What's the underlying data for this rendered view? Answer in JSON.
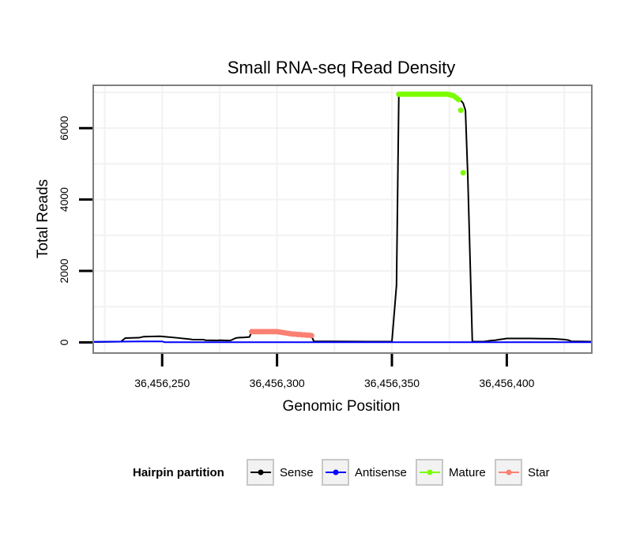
{
  "chart_data": {
    "type": "line",
    "title": "Small RNA-seq Read Density",
    "xlabel": "Genomic Position",
    "ylabel": "Total Reads",
    "xlim": [
      36456220,
      36456437
    ],
    "ylim": [
      -300,
      7200
    ],
    "x_ticks": [
      {
        "value": 36456250,
        "label": "36,456,250"
      },
      {
        "value": 36456300,
        "label": "36,456,300"
      },
      {
        "value": 36456350,
        "label": "36,456,350"
      },
      {
        "value": 36456400,
        "label": "36,456,400"
      }
    ],
    "y_ticks": [
      {
        "value": 0,
        "label": "0"
      },
      {
        "value": 2000,
        "label": "2000"
      },
      {
        "value": 4000,
        "label": "4000"
      },
      {
        "value": 6000,
        "label": "6000"
      }
    ],
    "grid": true,
    "legend": {
      "title": "Hairpin partition",
      "position": "bottom",
      "entries": [
        {
          "name": "Sense",
          "color": "#000000"
        },
        {
          "name": "Antisense",
          "color": "#0000ff"
        },
        {
          "name": "Mature",
          "color": "#7cfc00"
        },
        {
          "name": "Star",
          "color": "#fa8072"
        }
      ]
    },
    "series": [
      {
        "name": "Sense",
        "color": "#000000",
        "style": "line",
        "x": [
          36456220,
          36456225,
          36456232,
          36456234,
          36456240,
          36456242,
          36456249,
          36456251,
          36456256,
          36456262,
          36456263,
          36456268,
          36456269,
          36456274,
          36456275,
          36456279,
          36456280,
          36456282,
          36456283,
          36456286,
          36456288,
          36456289,
          36456300,
          36456301,
          36456303,
          36456305,
          36456308,
          36456311,
          36456313,
          36456314,
          36456315,
          36456316,
          36456340,
          36456350,
          36456352,
          36456353,
          36456354,
          36456375,
          36456377,
          36456379,
          36456381,
          36456382,
          36456383,
          36456385,
          36456390,
          36456391,
          36456392,
          36456393,
          36456395,
          36456396,
          36456400,
          36456406,
          36456410,
          36456415,
          36456420,
          36456425,
          36456427,
          36456428,
          36456437
        ],
        "y": [
          10,
          15,
          20,
          120,
          130,
          160,
          170,
          160,
          130,
          90,
          80,
          75,
          60,
          55,
          60,
          50,
          60,
          120,
          130,
          140,
          150,
          300,
          300,
          280,
          270,
          260,
          230,
          220,
          210,
          200,
          180,
          30,
          20,
          20,
          1600,
          6900,
          6950,
          6950,
          6900,
          6850,
          6700,
          6500,
          4700,
          20,
          20,
          30,
          40,
          50,
          60,
          70,
          110,
          110,
          110,
          105,
          100,
          80,
          60,
          30,
          20
        ]
      },
      {
        "name": "Antisense",
        "color": "#0000ff",
        "style": "line",
        "x": [
          36456220,
          36456240,
          36456250,
          36456251,
          36456280,
          36456320,
          36456352,
          36456360,
          36456437
        ],
        "y": [
          15,
          25,
          25,
          5,
          5,
          5,
          5,
          5,
          5
        ]
      },
      {
        "name": "Mature",
        "color": "#7cfc00",
        "style": "points",
        "x": [
          36456353,
          36456354,
          36456355,
          36456356,
          36456357,
          36456358,
          36456359,
          36456360,
          36456361,
          36456362,
          36456363,
          36456364,
          36456365,
          36456366,
          36456367,
          36456368,
          36456369,
          36456370,
          36456371,
          36456372,
          36456373,
          36456374,
          36456375,
          36456376,
          36456377,
          36456378,
          36456379,
          36456380,
          36456381
        ],
        "y": [
          6950,
          6950,
          6950,
          6950,
          6950,
          6950,
          6950,
          6950,
          6950,
          6950,
          6950,
          6950,
          6950,
          6950,
          6950,
          6950,
          6950,
          6950,
          6950,
          6950,
          6950,
          6950,
          6940,
          6920,
          6900,
          6850,
          6800,
          6500,
          4750
        ]
      },
      {
        "name": "Star",
        "color": "#fa8072",
        "style": "points",
        "x": [
          36456289,
          36456290,
          36456291,
          36456292,
          36456293,
          36456294,
          36456295,
          36456296,
          36456297,
          36456298,
          36456299,
          36456300,
          36456301,
          36456302,
          36456303,
          36456304,
          36456305,
          36456306,
          36456307,
          36456308,
          36456309,
          36456310,
          36456311,
          36456312,
          36456313,
          36456314,
          36456315
        ],
        "y": [
          300,
          300,
          300,
          300,
          300,
          300,
          300,
          300,
          300,
          300,
          300,
          300,
          290,
          280,
          270,
          260,
          250,
          240,
          230,
          230,
          220,
          220,
          210,
          210,
          200,
          200,
          190
        ]
      }
    ]
  }
}
